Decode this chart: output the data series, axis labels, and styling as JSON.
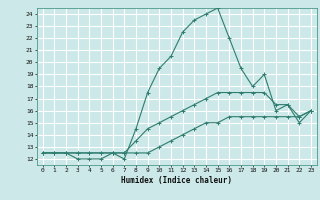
{
  "title": "",
  "xlabel": "Humidex (Indice chaleur)",
  "bg_color": "#cce8e8",
  "grid_color": "#ffffff",
  "line_color": "#2e7d6e",
  "xlim": [
    -0.5,
    23.5
  ],
  "ylim": [
    11.5,
    24.5
  ],
  "xticks": [
    0,
    1,
    2,
    3,
    4,
    5,
    6,
    7,
    8,
    9,
    10,
    11,
    12,
    13,
    14,
    15,
    16,
    17,
    18,
    19,
    20,
    21,
    22,
    23
  ],
  "yticks": [
    12,
    13,
    14,
    15,
    16,
    17,
    18,
    19,
    20,
    21,
    22,
    23,
    24
  ],
  "series1_x": [
    0,
    1,
    2,
    3,
    4,
    5,
    6,
    7,
    8,
    9,
    10,
    11,
    12,
    13,
    14,
    15,
    16,
    17,
    18,
    19,
    20,
    21,
    22,
    23
  ],
  "series1_y": [
    12.5,
    12.5,
    12.5,
    12.5,
    12.5,
    12.5,
    12.5,
    12.5,
    12.5,
    12.5,
    13.0,
    13.5,
    14.0,
    14.5,
    15.0,
    15.0,
    15.5,
    15.5,
    15.5,
    15.5,
    15.5,
    15.5,
    15.5,
    16.0
  ],
  "series2_x": [
    0,
    1,
    2,
    3,
    4,
    5,
    6,
    7,
    8,
    9,
    10,
    11,
    12,
    13,
    14,
    15,
    16,
    17,
    18,
    19,
    20,
    21,
    22,
    23
  ],
  "series2_y": [
    12.5,
    12.5,
    12.5,
    12.0,
    12.0,
    12.0,
    12.5,
    12.0,
    14.5,
    17.5,
    19.5,
    20.5,
    22.5,
    23.5,
    24.0,
    24.5,
    22.0,
    19.5,
    18.0,
    19.0,
    16.0,
    16.5,
    15.0,
    16.0
  ],
  "series3_x": [
    0,
    1,
    2,
    3,
    4,
    5,
    6,
    7,
    8,
    9,
    10,
    11,
    12,
    13,
    14,
    15,
    16,
    17,
    18,
    19,
    20,
    21,
    22,
    23
  ],
  "series3_y": [
    12.5,
    12.5,
    12.5,
    12.5,
    12.5,
    12.5,
    12.5,
    12.5,
    13.5,
    14.5,
    15.0,
    15.5,
    16.0,
    16.5,
    17.0,
    17.5,
    17.5,
    17.5,
    17.5,
    17.5,
    16.5,
    16.5,
    15.5,
    16.0
  ]
}
